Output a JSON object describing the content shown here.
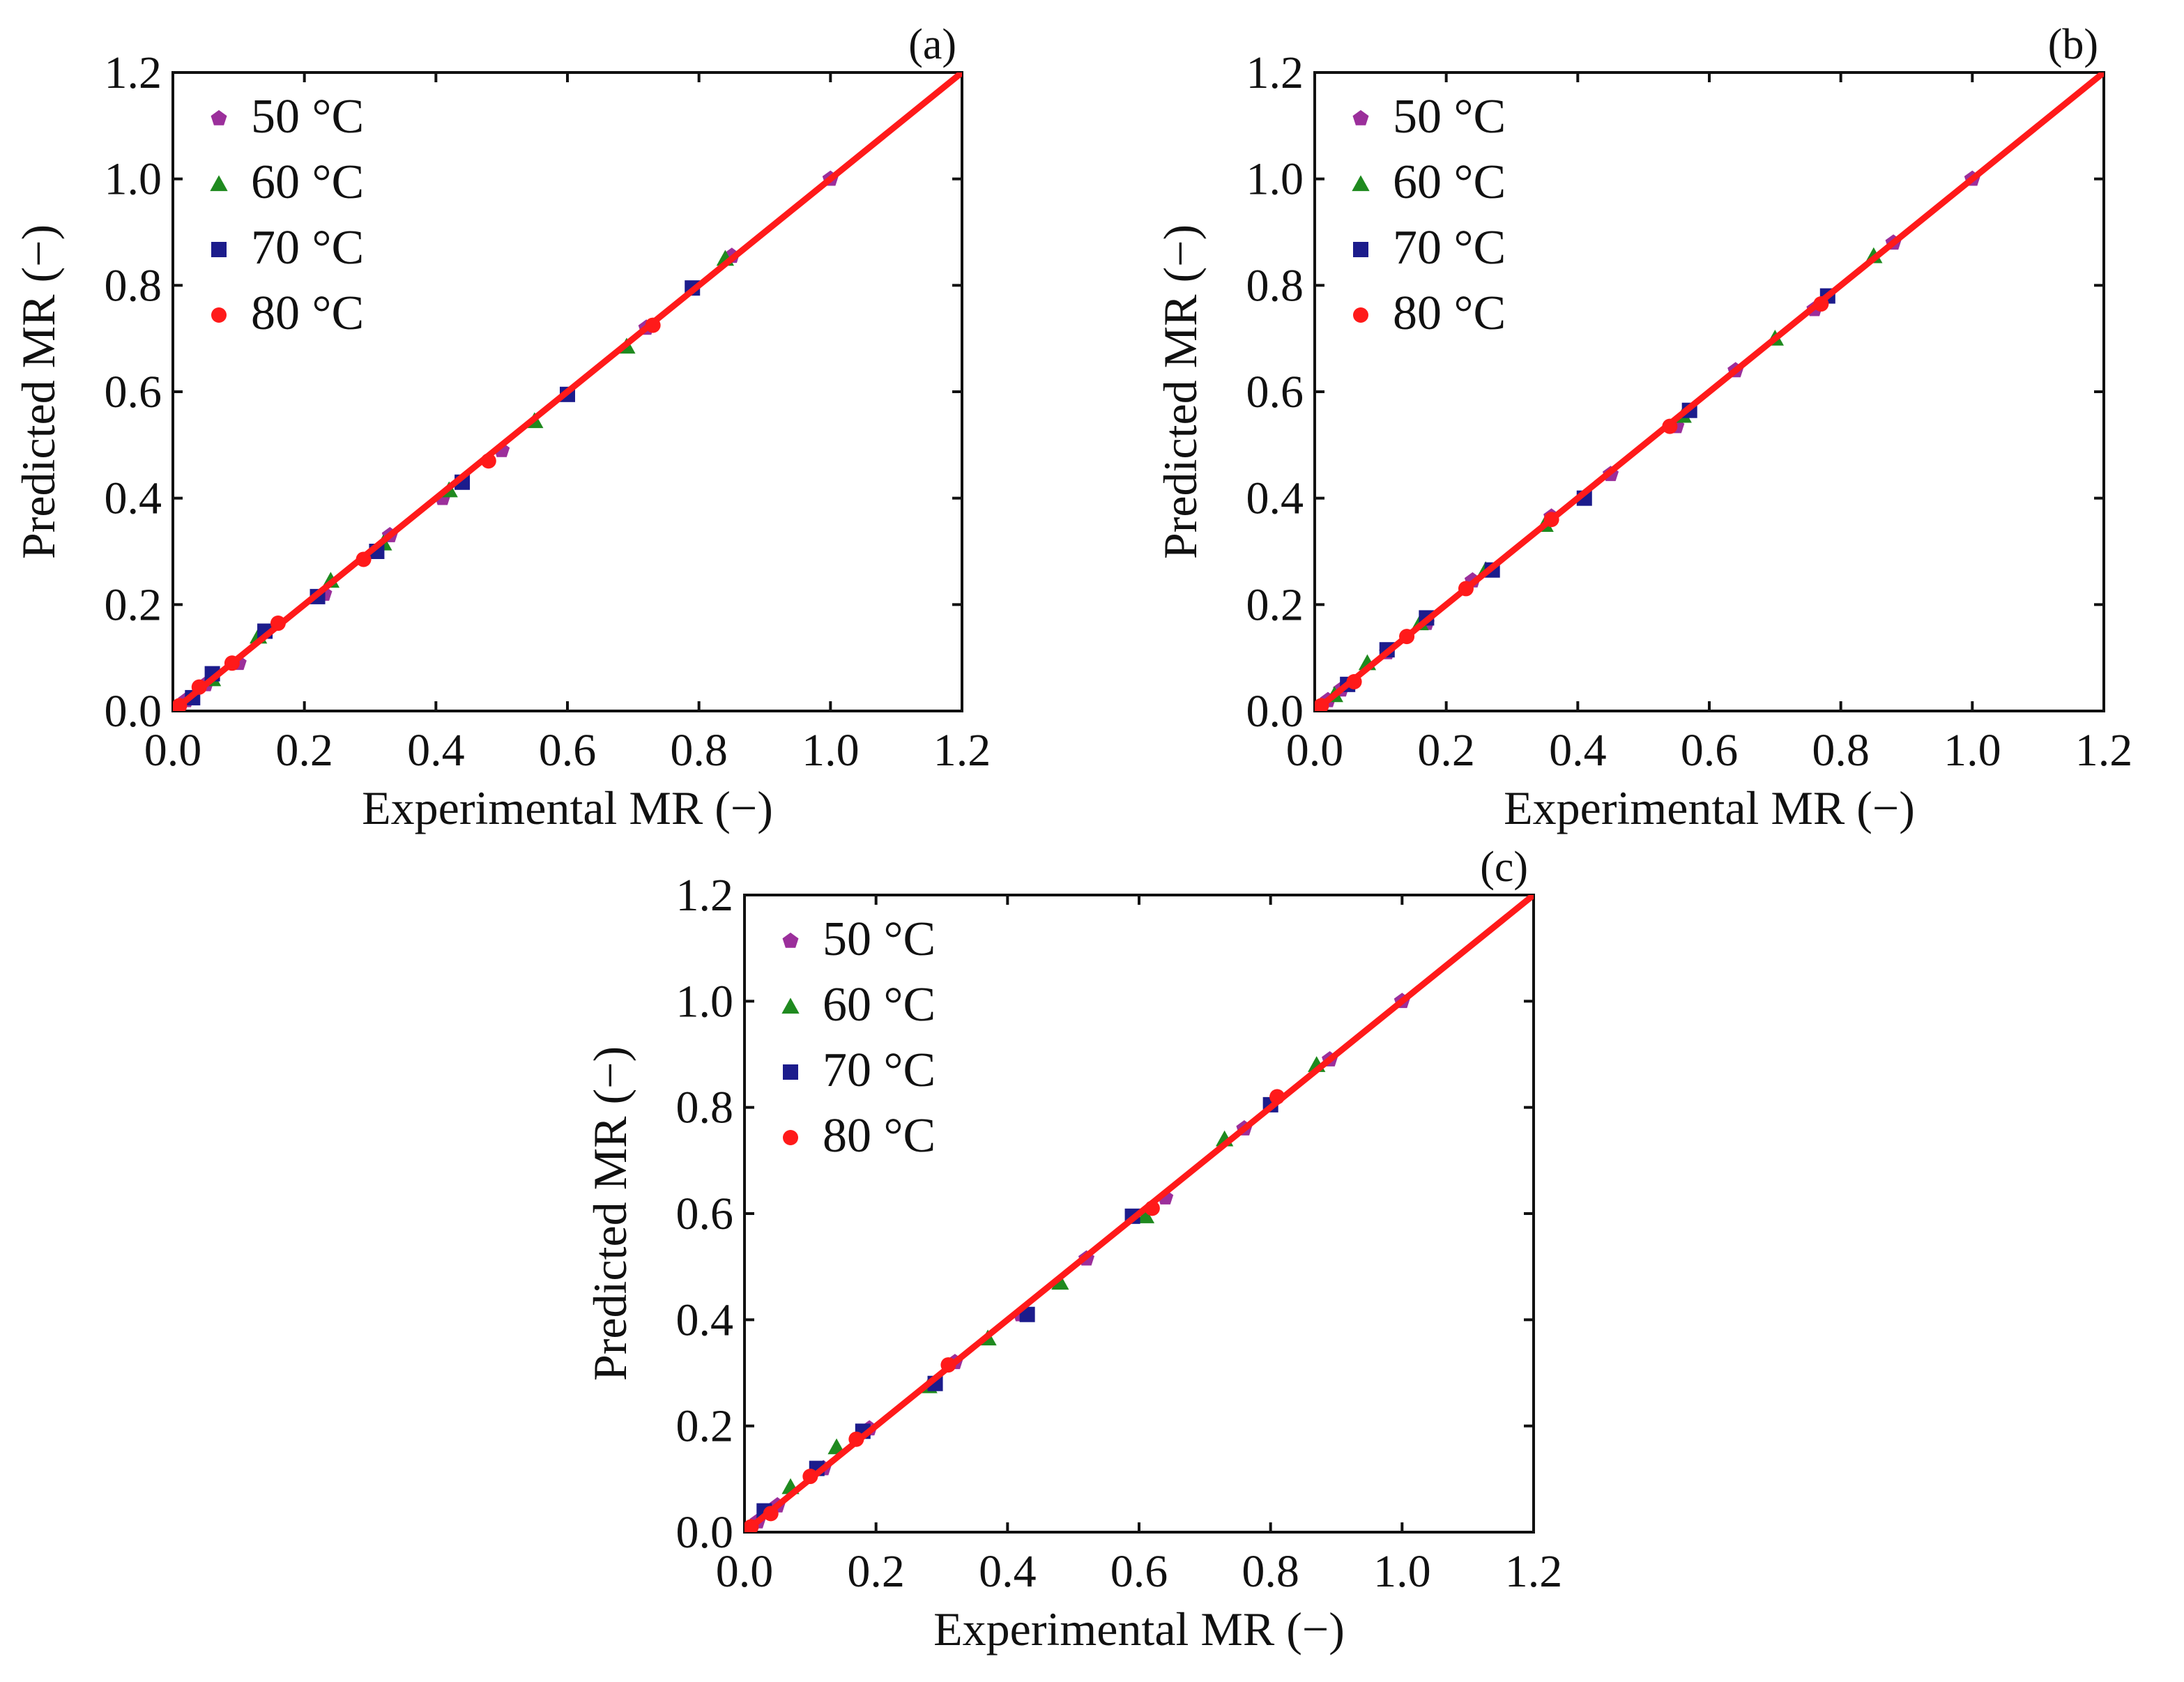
{
  "figure": {
    "panel_tags": [
      "(a)",
      "(b)",
      "(c)"
    ],
    "series_colors": {
      "50 °C": "#9b2f9b",
      "60 °C": "#1f8a1f",
      "70 °C": "#1c1c8c",
      "80 °C": "#ff1a1a"
    },
    "marker_shapes": {
      "50 °C": "pentagon",
      "60 °C": "triangle",
      "70 °C": "square",
      "80 °C": "circle"
    },
    "fit_line_color": "#ff1a1a"
  },
  "chart_data": [
    {
      "type": "scatter",
      "panel": "(a)",
      "xlabel": "Experimental MR (−)",
      "ylabel": "Predicted MR (−)",
      "xlim": [
        0.0,
        1.2
      ],
      "ylim": [
        0.0,
        1.2
      ],
      "xticks": [
        "0.0",
        "0.2",
        "0.4",
        "0.6",
        "0.8",
        "1.0",
        "1.2"
      ],
      "yticks": [
        "0.0",
        "0.2",
        "0.4",
        "0.6",
        "0.8",
        "1.0",
        "1.2"
      ],
      "legend": [
        "50 °C",
        "60 °C",
        "70 °C",
        "80 °C"
      ],
      "fit_line": {
        "x": [
          0.0,
          1.2
        ],
        "y": [
          0.0,
          1.2
        ]
      },
      "series": [
        {
          "name": "50 °C",
          "x": [
            1.0,
            0.85,
            0.72,
            0.5,
            0.41,
            0.33,
            0.23,
            0.1,
            0.05,
            0.02
          ],
          "y": [
            1.0,
            0.855,
            0.72,
            0.49,
            0.4,
            0.33,
            0.22,
            0.09,
            0.05,
            0.02
          ]
        },
        {
          "name": "60 °C",
          "x": [
            0.84,
            0.69,
            0.55,
            0.42,
            0.32,
            0.24,
            0.13,
            0.06
          ],
          "y": [
            0.85,
            0.685,
            0.545,
            0.415,
            0.315,
            0.245,
            0.14,
            0.06
          ]
        },
        {
          "name": "70 °C",
          "x": [
            0.79,
            0.6,
            0.44,
            0.31,
            0.22,
            0.14,
            0.06,
            0.03
          ],
          "y": [
            0.795,
            0.595,
            0.43,
            0.3,
            0.215,
            0.15,
            0.07,
            0.025
          ]
        },
        {
          "name": "80 °C",
          "x": [
            0.73,
            0.48,
            0.29,
            0.16,
            0.09,
            0.04,
            0.01
          ],
          "y": [
            0.725,
            0.47,
            0.285,
            0.165,
            0.09,
            0.045,
            0.01
          ]
        }
      ]
    },
    {
      "type": "scatter",
      "panel": "(b)",
      "xlabel": "Experimental MR (−)",
      "ylabel": "Predicted MR (−)",
      "xlim": [
        0.0,
        1.2
      ],
      "ylim": [
        0.0,
        1.2
      ],
      "xticks": [
        "0.0",
        "0.2",
        "0.4",
        "0.6",
        "0.8",
        "1.0",
        "1.2"
      ],
      "yticks": [
        "0.0",
        "0.2",
        "0.4",
        "0.6",
        "0.8",
        "1.0",
        "1.2"
      ],
      "legend": [
        "50 °C",
        "60 °C",
        "70 °C",
        "80 °C"
      ],
      "fit_line": {
        "x": [
          0.0,
          1.2
        ],
        "y": [
          0.0,
          1.2
        ]
      },
      "series": [
        {
          "name": "50 °C",
          "x": [
            1.0,
            0.88,
            0.76,
            0.64,
            0.55,
            0.45,
            0.36,
            0.24,
            0.17,
            0.11,
            0.04,
            0.02
          ],
          "y": [
            1.0,
            0.88,
            0.755,
            0.64,
            0.535,
            0.445,
            0.365,
            0.245,
            0.165,
            0.11,
            0.04,
            0.02
          ]
        },
        {
          "name": "60 °C",
          "x": [
            0.85,
            0.7,
            0.56,
            0.35,
            0.26,
            0.16,
            0.08,
            0.03
          ],
          "y": [
            0.855,
            0.7,
            0.555,
            0.35,
            0.265,
            0.165,
            0.09,
            0.03
          ]
        },
        {
          "name": "70 °C",
          "x": [
            0.78,
            0.57,
            0.41,
            0.27,
            0.17,
            0.11,
            0.05
          ],
          "y": [
            0.78,
            0.565,
            0.4,
            0.265,
            0.175,
            0.115,
            0.05
          ]
        },
        {
          "name": "80 °C",
          "x": [
            0.77,
            0.54,
            0.36,
            0.23,
            0.14,
            0.06,
            0.01
          ],
          "y": [
            0.765,
            0.535,
            0.36,
            0.23,
            0.14,
            0.055,
            0.01
          ]
        }
      ]
    },
    {
      "type": "scatter",
      "panel": "(c)",
      "xlabel": "Experimental MR (−)",
      "ylabel": "Predicted MR (−)",
      "xlim": [
        0.0,
        1.2
      ],
      "ylim": [
        0.0,
        1.2
      ],
      "xticks": [
        "0.0",
        "0.2",
        "0.4",
        "0.6",
        "0.8",
        "1.0",
        "1.2"
      ],
      "yticks": [
        "0.0",
        "0.2",
        "0.4",
        "0.6",
        "0.8",
        "1.0",
        "1.2"
      ],
      "legend": [
        "50 °C",
        "60 °C",
        "70 °C",
        "80 °C"
      ],
      "fit_line": {
        "x": [
          0.0,
          1.2
        ],
        "y": [
          0.0,
          1.2
        ]
      },
      "series": [
        {
          "name": "50 °C",
          "x": [
            1.0,
            0.89,
            0.76,
            0.64,
            0.52,
            0.42,
            0.32,
            0.19,
            0.12,
            0.05,
            0.02
          ],
          "y": [
            1.0,
            0.89,
            0.76,
            0.63,
            0.515,
            0.41,
            0.32,
            0.195,
            0.12,
            0.05,
            0.02
          ]
        },
        {
          "name": "60 °C",
          "x": [
            0.87,
            0.73,
            0.61,
            0.48,
            0.37,
            0.28,
            0.14,
            0.07
          ],
          "y": [
            0.88,
            0.74,
            0.595,
            0.47,
            0.365,
            0.275,
            0.16,
            0.085
          ]
        },
        {
          "name": "70 °C",
          "x": [
            0.8,
            0.59,
            0.43,
            0.29,
            0.18,
            0.11,
            0.03
          ],
          "y": [
            0.805,
            0.595,
            0.41,
            0.28,
            0.19,
            0.12,
            0.04
          ]
        },
        {
          "name": "80 °C",
          "x": [
            0.81,
            0.62,
            0.31,
            0.17,
            0.1,
            0.04,
            0.01
          ],
          "y": [
            0.82,
            0.61,
            0.315,
            0.175,
            0.105,
            0.035,
            0.01
          ]
        }
      ]
    }
  ]
}
